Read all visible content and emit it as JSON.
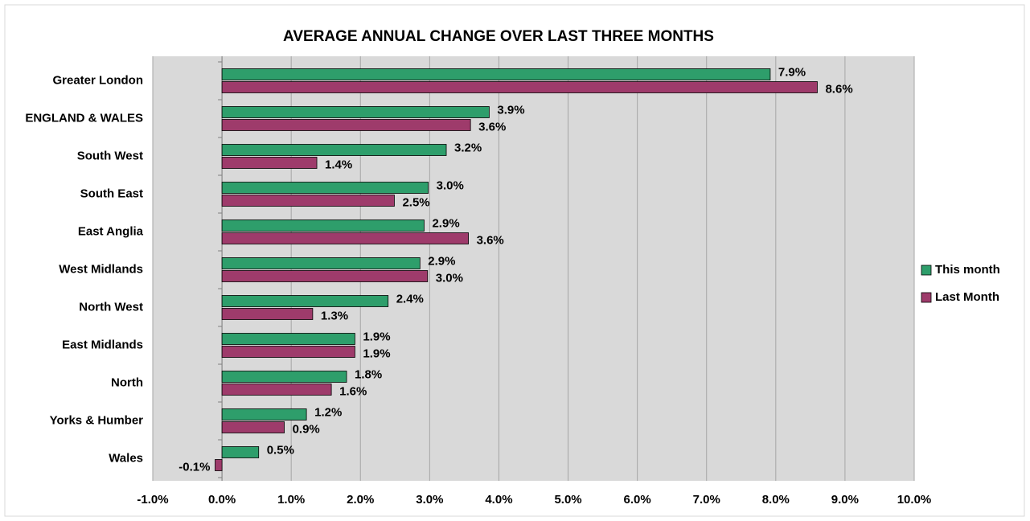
{
  "chart_data": {
    "type": "bar",
    "orientation": "horizontal",
    "title": "AVERAGE ANNUAL CHANGE OVER LAST THREE MONTHS",
    "categories": [
      "Greater London",
      "ENGLAND & WALES",
      "South West",
      "South East",
      "East Anglia",
      "West Midlands",
      "North West",
      "East Midlands",
      "North",
      "Yorks & Humber",
      "Wales"
    ],
    "series": [
      {
        "name": "This month",
        "color": "#2e9e6b",
        "values": [
          7.92,
          3.86,
          3.24,
          2.98,
          2.92,
          2.86,
          2.4,
          1.92,
          1.8,
          1.22,
          0.53
        ],
        "value_labels": [
          "7.9%",
          "3.9%",
          "3.2%",
          "3.0%",
          "2.9%",
          "2.9%",
          "2.4%",
          "1.9%",
          "1.8%",
          "1.2%",
          "0.5%"
        ]
      },
      {
        "name": "Last Month",
        "color": "#9e3b6b",
        "values": [
          8.6,
          3.59,
          1.37,
          2.49,
          3.56,
          2.97,
          1.31,
          1.92,
          1.58,
          0.9,
          -0.1
        ],
        "value_labels": [
          "8.6%",
          "3.6%",
          "1.4%",
          "2.5%",
          "3.6%",
          "3.0%",
          "1.3%",
          "1.9%",
          "1.6%",
          "0.9%",
          "-0.1%"
        ]
      }
    ],
    "xlim": [
      -1,
      10
    ],
    "xticks": [
      {
        "value": -1,
        "label": "-1.0%"
      },
      {
        "value": 0,
        "label": "0.0%"
      },
      {
        "value": 1,
        "label": "1.0%"
      },
      {
        "value": 2,
        "label": "2.0%"
      },
      {
        "value": 3,
        "label": "3.0%"
      },
      {
        "value": 4,
        "label": "4.0%"
      },
      {
        "value": 5,
        "label": "5.0%"
      },
      {
        "value": 6,
        "label": "6.0%"
      },
      {
        "value": 7,
        "label": "7.0%"
      },
      {
        "value": 8,
        "label": "8.0%"
      },
      {
        "value": 9,
        "label": "9.0%"
      },
      {
        "value": 10,
        "label": "10.0%"
      }
    ],
    "grid": true,
    "legend": "right"
  }
}
